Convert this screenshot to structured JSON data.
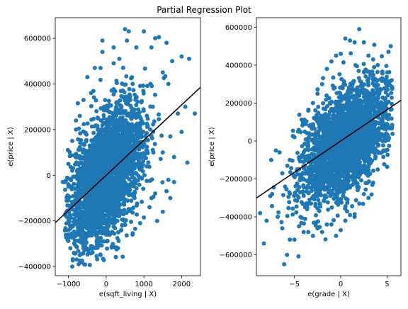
{
  "figure": {
    "suptitle": "Partial Regression Plot"
  },
  "chart_data": [
    {
      "type": "scatter",
      "title": "",
      "xlabel": "e(sqft_living | X)",
      "ylabel": "e(price | X)",
      "xlim": [
        -1350,
        2500
      ],
      "ylim": [
        -440000,
        690000
      ],
      "xticks": [
        -1000,
        0,
        1000,
        2000
      ],
      "xtick_labels": [
        "−1000",
        "0",
        "1000",
        "2000"
      ],
      "yticks": [
        -400000,
        -200000,
        0,
        200000,
        400000,
        600000
      ],
      "ytick_labels": [
        "−400000",
        "−200000",
        "0",
        "200000",
        "400000",
        "600000"
      ],
      "grid": false,
      "marker_color": "#1f77b4",
      "line_color": "#000000",
      "fit_line": {
        "slope": 154,
        "intercept": 0
      },
      "point_cloud": {
        "count": 2600,
        "x_mean": 0,
        "x_sd": 500,
        "y_sd": 135000,
        "slope": 154,
        "x_range": [
          -1100,
          2250
        ],
        "y_range": [
          -400000,
          640000
        ]
      },
      "points": [
        [
          -1050,
          -160000
        ],
        [
          -1100,
          -30000
        ],
        [
          -1000,
          -260000
        ],
        [
          -950,
          -320000
        ],
        [
          -900,
          -400000
        ],
        [
          -850,
          -340000
        ],
        [
          -800,
          -310000
        ],
        [
          -700,
          -350000
        ],
        [
          -600,
          -320000
        ],
        [
          -400,
          -310000
        ],
        [
          -200,
          -295000
        ],
        [
          0,
          -260000
        ],
        [
          -100,
          -230000
        ],
        [
          200,
          -225000
        ],
        [
          400,
          -240000
        ],
        [
          700,
          -260000
        ],
        [
          900,
          -210000
        ],
        [
          1000,
          -185000
        ],
        [
          1150,
          -140000
        ],
        [
          1200,
          -100000
        ],
        [
          1300,
          -80000
        ],
        [
          1350,
          -200000
        ],
        [
          1500,
          -160000
        ],
        [
          1700,
          -100000
        ],
        [
          1600,
          -70000
        ],
        [
          1800,
          -30000
        ],
        [
          1650,
          -20000
        ],
        [
          2150,
          55000
        ],
        [
          1800,
          80000
        ],
        [
          1500,
          100000
        ],
        [
          1700,
          170000
        ],
        [
          2000,
          190000
        ],
        [
          2100,
          300000
        ],
        [
          1900,
          270000
        ],
        [
          2350,
          270000
        ],
        [
          2200,
          510000
        ],
        [
          2000,
          520000
        ],
        [
          1750,
          500000
        ],
        [
          1650,
          400000
        ],
        [
          1500,
          450000
        ],
        [
          1600,
          580000
        ],
        [
          1400,
          605000
        ],
        [
          1300,
          600000
        ],
        [
          1200,
          560000
        ],
        [
          1000,
          630000
        ],
        [
          600,
          630000
        ],
        [
          500,
          640000
        ],
        [
          800,
          560000
        ],
        [
          350,
          510000
        ],
        [
          200,
          490000
        ],
        [
          -100,
          540000
        ],
        [
          -150,
          470000
        ],
        [
          -300,
          470000
        ],
        [
          -100,
          590000
        ],
        [
          200,
          560000
        ],
        [
          550,
          590000
        ],
        [
          -500,
          430000
        ],
        [
          -750,
          315000
        ],
        [
          -700,
          260000
        ],
        [
          -800,
          200000
        ],
        [
          -900,
          150000
        ],
        [
          -1000,
          50000
        ],
        [
          -800,
          240000
        ],
        [
          -600,
          330000
        ],
        [
          -400,
          360000
        ],
        [
          -900,
          20000
        ],
        [
          -1000,
          -50000
        ],
        [
          -1150,
          -30000
        ]
      ]
    },
    {
      "type": "scatter",
      "title": "",
      "xlabel": "e(grade | X)",
      "ylabel": "e(price | X)",
      "xlim": [
        -9.1,
        6.5
      ],
      "ylim": [
        -710000,
        650000
      ],
      "xticks": [
        -5,
        0,
        5
      ],
      "xtick_labels": [
        "−5",
        "0",
        "5"
      ],
      "yticks": [
        -600000,
        -400000,
        -200000,
        0,
        200000,
        400000,
        600000
      ],
      "ytick_labels": [
        "−600000",
        "−400000",
        "−200000",
        "0",
        "200000",
        "400000",
        "600000"
      ],
      "grid": false,
      "marker_color": "#1f77b4",
      "line_color": "#000000",
      "fit_line": {
        "slope": 33000,
        "intercept": 0
      },
      "point_cloud": {
        "count": 2600,
        "x_mean": 0.5,
        "x_sd": 2.3,
        "y_sd": 130000,
        "slope": 33000,
        "x_range": [
          -8.7,
          5.6
        ],
        "y_range": [
          -660000,
          600000
        ]
      },
      "points": [
        [
          -8.7,
          -380000
        ],
        [
          -8.3,
          -540000
        ],
        [
          -8.0,
          -420000
        ],
        [
          -7.6,
          -290000
        ],
        [
          -7.4,
          -280000
        ],
        [
          -7.5,
          -100000
        ],
        [
          -7.0,
          -50000
        ],
        [
          -6.6,
          -60000
        ],
        [
          -6.3,
          -170000
        ],
        [
          -6.0,
          -240000
        ],
        [
          -5.5,
          -100000
        ],
        [
          -5.0,
          20000
        ],
        [
          -4.6,
          50000
        ],
        [
          -4.0,
          100000
        ],
        [
          -3.5,
          160000
        ],
        [
          -3.0,
          200000
        ],
        [
          -2.5,
          250000
        ],
        [
          -2.0,
          300000
        ],
        [
          -1.5,
          380000
        ],
        [
          -1.0,
          420000
        ],
        [
          -0.5,
          450000
        ],
        [
          0.0,
          460000
        ],
        [
          0.5,
          540000
        ],
        [
          1.0,
          530000
        ],
        [
          1.5,
          520000
        ],
        [
          2.0,
          590000
        ],
        [
          2.5,
          520000
        ],
        [
          3.0,
          450000
        ],
        [
          3.5,
          430000
        ],
        [
          4.0,
          400000
        ],
        [
          4.5,
          330000
        ],
        [
          5.2,
          300000
        ],
        [
          5.5,
          320000
        ],
        [
          5.0,
          90000
        ],
        [
          4.8,
          0
        ],
        [
          4.6,
          -50000
        ],
        [
          4.0,
          -150000
        ],
        [
          3.5,
          -220000
        ],
        [
          3.0,
          -300000
        ],
        [
          2.5,
          -280000
        ],
        [
          2.0,
          -330000
        ],
        [
          1.5,
          -400000
        ],
        [
          1.0,
          -390000
        ],
        [
          0.5,
          -420000
        ],
        [
          0.0,
          -470000
        ],
        [
          -0.5,
          -500000
        ],
        [
          -1.0,
          -440000
        ],
        [
          -1.5,
          -440000
        ],
        [
          -2.0,
          -480000
        ],
        [
          -2.5,
          -460000
        ],
        [
          -3.0,
          -500000
        ],
        [
          -3.5,
          -480000
        ],
        [
          -4.0,
          -480000
        ],
        [
          -4.5,
          -450000
        ],
        [
          -5.0,
          -520000
        ],
        [
          -5.5,
          -520000
        ],
        [
          -5.8,
          -600000
        ],
        [
          -6.1,
          -650000
        ],
        [
          -6.3,
          -460000
        ],
        [
          -6.8,
          -400000
        ]
      ]
    }
  ]
}
